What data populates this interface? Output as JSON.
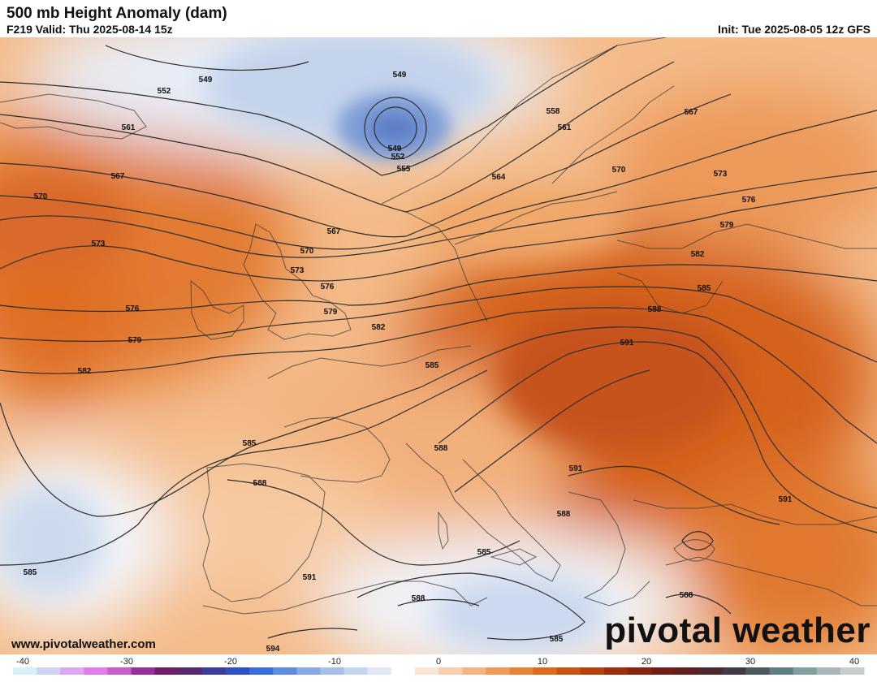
{
  "header": {
    "title": "500 mb Height Anomaly (dam)",
    "valid": "F219 Valid: Thu 2025-08-14 15z",
    "init": "Init: Tue 2025-08-05 12z GFS"
  },
  "footer": {
    "website": "www.pivotalweather.com",
    "brand": "pivotal weather"
  },
  "colorbar": {
    "ticks": [
      "-40",
      "-30",
      "-20",
      "-10",
      "0",
      "10",
      "20",
      "30",
      "40"
    ],
    "colors": [
      "#d6f1f7",
      "#d2d2f2",
      "#dca8ef",
      "#df7de9",
      "#c45fc8",
      "#9a2f9a",
      "#6e1f6a",
      "#552a6c",
      "#3c3c9a",
      "#2f4ec0",
      "#3a6dd6",
      "#5f8dde",
      "#86a8e3",
      "#a8c0e8",
      "#c6d6ee",
      "#e2e9f5",
      "#ffffff",
      "#fbe6d5",
      "#f8cfae",
      "#f4b583",
      "#ee9c5c",
      "#e88438",
      "#dc6b1e",
      "#c95515",
      "#b3420f",
      "#9c2f0c",
      "#852411",
      "#701e1a",
      "#5c2020",
      "#4a2a30",
      "#3f3a44",
      "#4b5a5e",
      "#5f7f80",
      "#82a0a0",
      "#a8b8b8",
      "#c9cccc"
    ]
  },
  "contour_labels": [
    {
      "id": "549a",
      "text": "549"
    },
    {
      "id": "549b",
      "text": "549"
    },
    {
      "id": "549c",
      "text": "549"
    },
    {
      "id": "552a",
      "text": "552"
    },
    {
      "id": "552b",
      "text": "552"
    },
    {
      "id": "555",
      "text": "555"
    },
    {
      "id": "558",
      "text": "558"
    },
    {
      "id": "561a",
      "text": "561"
    },
    {
      "id": "561b",
      "text": "561"
    },
    {
      "id": "564",
      "text": "564"
    },
    {
      "id": "567a",
      "text": "567"
    },
    {
      "id": "567b",
      "text": "567"
    },
    {
      "id": "567c",
      "text": "567"
    },
    {
      "id": "570a",
      "text": "570"
    },
    {
      "id": "570b",
      "text": "570"
    },
    {
      "id": "570c",
      "text": "570"
    },
    {
      "id": "573a",
      "text": "573"
    },
    {
      "id": "573b",
      "text": "573"
    },
    {
      "id": "573c",
      "text": "573"
    },
    {
      "id": "576a",
      "text": "576"
    },
    {
      "id": "576b",
      "text": "576"
    },
    {
      "id": "576c",
      "text": "576"
    },
    {
      "id": "579a",
      "text": "579"
    },
    {
      "id": "579b",
      "text": "579"
    },
    {
      "id": "579c",
      "text": "579"
    },
    {
      "id": "582a",
      "text": "582"
    },
    {
      "id": "582b",
      "text": "582"
    },
    {
      "id": "582c",
      "text": "582"
    },
    {
      "id": "585a",
      "text": "585"
    },
    {
      "id": "585b",
      "text": "585"
    },
    {
      "id": "585c",
      "text": "585"
    },
    {
      "id": "585d",
      "text": "585"
    },
    {
      "id": "585e",
      "text": "585"
    },
    {
      "id": "585f",
      "text": "585"
    },
    {
      "id": "588a",
      "text": "588"
    },
    {
      "id": "588b",
      "text": "588"
    },
    {
      "id": "588c",
      "text": "588"
    },
    {
      "id": "588d",
      "text": "588"
    },
    {
      "id": "588e",
      "text": "588"
    },
    {
      "id": "588f",
      "text": "588"
    },
    {
      "id": "591a",
      "text": "591"
    },
    {
      "id": "591b",
      "text": "591"
    },
    {
      "id": "591c",
      "text": "591"
    },
    {
      "id": "591d",
      "text": "591"
    },
    {
      "id": "594",
      "text": "594"
    }
  ]
}
